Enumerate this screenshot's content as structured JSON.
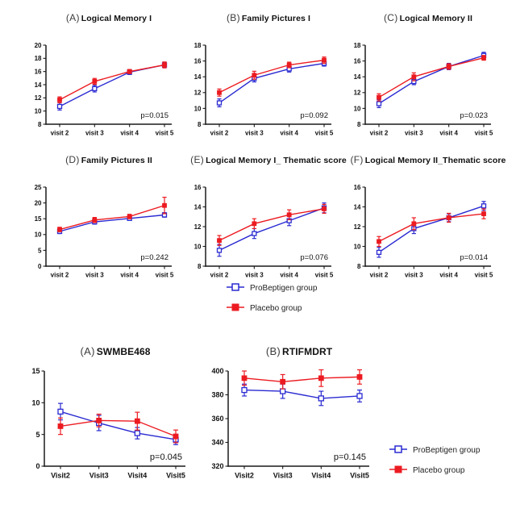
{
  "figure": {
    "background": "#ffffff",
    "colors": {
      "probeptigen_blue": "#2a2ad2",
      "placebo_red": "#ec1b21",
      "axis_black": "#1a1a1a",
      "text_dark": "#111111"
    }
  },
  "legend_top": {
    "items": [
      {
        "label": "ProBeptigen group",
        "marker": "open-square",
        "color": "#2a2ad2"
      },
      {
        "label": "Placebo group",
        "marker": "filled-square",
        "color": "#ec1b21"
      }
    ]
  },
  "legend_bottom": {
    "items": [
      {
        "label": "ProBeptigen group",
        "marker": "open-square",
        "color": "#2a2ad2"
      },
      {
        "label": "Placebo group",
        "marker": "filled-square",
        "color": "#ec1b21"
      }
    ]
  },
  "chart_data": [
    {
      "section": "top",
      "type": "line",
      "panel_label": "(A)",
      "title": "Logical Memory I",
      "p_label": "p=0.015",
      "x_categories": [
        "visit 2",
        "visit 3",
        "visit 4",
        "visit 5"
      ],
      "ylim": [
        8,
        20
      ],
      "yticks": [
        8,
        10,
        12,
        14,
        16,
        18,
        20
      ],
      "series": [
        {
          "name": "ProBeptigen group",
          "color": "#2a2ad2",
          "marker": "open-square",
          "values": [
            10.7,
            13.4,
            15.9,
            17.0
          ],
          "errors": [
            0.55,
            0.5,
            0.35,
            0.4
          ]
        },
        {
          "name": "Placebo group",
          "color": "#ec1b21",
          "marker": "filled-square",
          "values": [
            11.7,
            14.5,
            16.0,
            17.0
          ],
          "errors": [
            0.45,
            0.45,
            0.3,
            0.45
          ]
        }
      ]
    },
    {
      "section": "top",
      "type": "line",
      "panel_label": "(B)",
      "title": "Family Pictures I",
      "p_label": "p=0.092",
      "x_categories": [
        "visit 2",
        "visit 3",
        "visit 4",
        "visit 5"
      ],
      "ylim": [
        8,
        18
      ],
      "yticks": [
        8,
        10,
        12,
        14,
        16,
        18
      ],
      "series": [
        {
          "name": "ProBeptigen group",
          "color": "#2a2ad2",
          "marker": "open-square",
          "values": [
            10.7,
            13.8,
            15.0,
            15.7
          ],
          "errors": [
            0.5,
            0.45,
            0.4,
            0.35
          ]
        },
        {
          "name": "Placebo group",
          "color": "#ec1b21",
          "marker": "filled-square",
          "values": [
            12.0,
            14.2,
            15.5,
            16.1
          ],
          "errors": [
            0.45,
            0.5,
            0.35,
            0.4
          ]
        }
      ]
    },
    {
      "section": "top",
      "type": "line",
      "panel_label": "(C)",
      "title": "Logical Memory II",
      "p_label": "p=0.023",
      "x_categories": [
        "visit 2",
        "visit 3",
        "visit 4",
        "visit 5"
      ],
      "ylim": [
        8,
        18
      ],
      "yticks": [
        8,
        10,
        12,
        14,
        16,
        18
      ],
      "series": [
        {
          "name": "ProBeptigen group",
          "color": "#2a2ad2",
          "marker": "open-square",
          "values": [
            10.6,
            13.4,
            15.3,
            16.7
          ],
          "errors": [
            0.5,
            0.4,
            0.4,
            0.4
          ]
        },
        {
          "name": "Placebo group",
          "color": "#ec1b21",
          "marker": "filled-square",
          "values": [
            11.4,
            14.0,
            15.3,
            16.4
          ],
          "errors": [
            0.45,
            0.5,
            0.35,
            0.3
          ]
        }
      ]
    },
    {
      "section": "top",
      "type": "line",
      "panel_label": "(D)",
      "title": "Family Pictures II",
      "p_label": "p=0.242",
      "x_categories": [
        "visit 2",
        "visit 3",
        "visit 4",
        "visit 5"
      ],
      "ylim": [
        0,
        25
      ],
      "yticks": [
        0,
        5,
        10,
        15,
        20,
        25
      ],
      "series": [
        {
          "name": "ProBeptigen group",
          "color": "#2a2ad2",
          "marker": "open-square",
          "values": [
            11.0,
            14.0,
            15.1,
            16.2
          ],
          "errors": [
            0.7,
            0.7,
            0.6,
            0.7
          ]
        },
        {
          "name": "Placebo group",
          "color": "#ec1b21",
          "marker": "filled-square",
          "values": [
            11.6,
            14.6,
            15.7,
            19.2
          ],
          "errors": [
            0.7,
            0.8,
            0.7,
            2.6
          ]
        }
      ]
    },
    {
      "section": "top",
      "type": "line",
      "panel_label": "(E)",
      "title": "Logical Memory I_ Thematic score",
      "p_label": "p=0.076",
      "x_categories": [
        "visit 2",
        "visit 3",
        "visit 4",
        "visit 5"
      ],
      "ylim": [
        8,
        16
      ],
      "yticks": [
        8,
        10,
        12,
        14,
        16
      ],
      "series": [
        {
          "name": "ProBeptigen group",
          "color": "#2a2ad2",
          "marker": "open-square",
          "values": [
            9.6,
            11.3,
            12.6,
            13.9
          ],
          "errors": [
            0.6,
            0.5,
            0.5,
            0.5
          ]
        },
        {
          "name": "Placebo group",
          "color": "#ec1b21",
          "marker": "filled-square",
          "values": [
            10.6,
            12.3,
            13.2,
            13.8
          ],
          "errors": [
            0.5,
            0.5,
            0.5,
            0.45
          ]
        }
      ]
    },
    {
      "section": "top",
      "type": "line",
      "panel_label": "(F)",
      "title": "Logical Memory II_Thematic score",
      "p_label": "p=0.014",
      "x_categories": [
        "visit 2",
        "visit 3",
        "visit 4",
        "visit 5"
      ],
      "ylim": [
        8,
        16
      ],
      "yticks": [
        8,
        10,
        12,
        14,
        16
      ],
      "series": [
        {
          "name": "ProBeptigen group",
          "color": "#2a2ad2",
          "marker": "open-square",
          "values": [
            9.4,
            11.8,
            12.9,
            14.1
          ],
          "errors": [
            0.5,
            0.5,
            0.4,
            0.45
          ]
        },
        {
          "name": "Placebo group",
          "color": "#ec1b21",
          "marker": "filled-square",
          "values": [
            10.5,
            12.3,
            12.9,
            13.3
          ],
          "errors": [
            0.5,
            0.6,
            0.45,
            0.5
          ]
        }
      ]
    },
    {
      "section": "bottom-a",
      "type": "line",
      "panel_label": "(A)",
      "title": "SWMBE468",
      "p_label": "p=0.045",
      "x_categories": [
        "Visit2",
        "Visit3",
        "Visit4",
        "Visit5"
      ],
      "ylim": [
        0,
        15
      ],
      "yticks": [
        0,
        5,
        10,
        15
      ],
      "series": [
        {
          "name": "ProBeptigen group",
          "color": "#2a2ad2",
          "marker": "open-square",
          "values": [
            8.6,
            6.8,
            5.2,
            4.2
          ],
          "errors": [
            1.3,
            1.2,
            0.9,
            0.8
          ]
        },
        {
          "name": "Placebo group",
          "color": "#ec1b21",
          "marker": "filled-square",
          "values": [
            6.3,
            7.2,
            7.1,
            4.7
          ],
          "errors": [
            1.3,
            1.0,
            1.4,
            1.0
          ]
        }
      ]
    },
    {
      "section": "bottom-b",
      "type": "line",
      "panel_label": "(B)",
      "title": "RTIFMDRT",
      "p_label": "p=0.145",
      "x_categories": [
        "Visit2",
        "Visit3",
        "Visit4",
        "Visit5"
      ],
      "ylim": [
        320,
        400
      ],
      "yticks": [
        320,
        340,
        360,
        380,
        400
      ],
      "series": [
        {
          "name": "ProBeptigen group",
          "color": "#2a2ad2",
          "marker": "open-square",
          "values": [
            384,
            383,
            377,
            379
          ],
          "errors": [
            5,
            6,
            6,
            5
          ]
        },
        {
          "name": "Placebo group",
          "color": "#ec1b21",
          "marker": "filled-square",
          "values": [
            394,
            391,
            394,
            395
          ],
          "errors": [
            6,
            6,
            7,
            6
          ]
        }
      ]
    }
  ]
}
